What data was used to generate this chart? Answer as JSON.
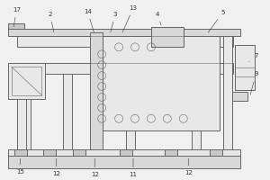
{
  "bg_color": "#f0f0f0",
  "fc_light": "#e8e8e8",
  "fc_mid": "#d8d8d8",
  "fc_dark": "#c8c8c8",
  "lc": "#666666",
  "lw": 0.7,
  "lw_thin": 0.4,
  "fig_w": 3.0,
  "fig_h": 2.0,
  "label_fs": 5.0,
  "ann_color": "#333333"
}
